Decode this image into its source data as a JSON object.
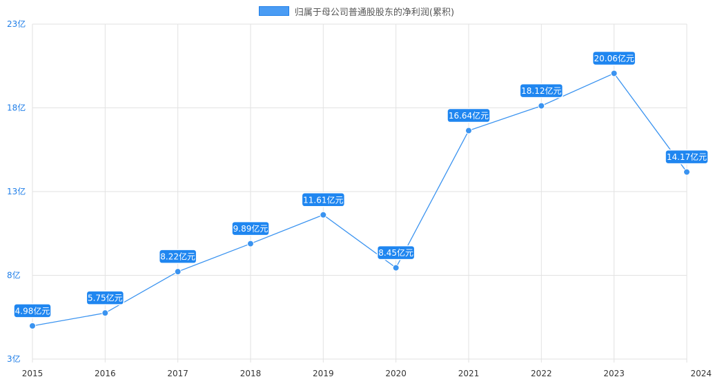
{
  "chart_data": {
    "type": "line",
    "legend": {
      "position": "top-center"
    },
    "x": [
      "2015",
      "2016",
      "2017",
      "2018",
      "2019",
      "2020",
      "2021",
      "2022",
      "2023",
      "2024"
    ],
    "series": [
      {
        "name": "归属于母公司普通股股东的净利润(累积)",
        "color": "#3a93f0",
        "values": [
          4.98,
          5.75,
          8.22,
          9.89,
          11.61,
          8.45,
          16.64,
          18.12,
          20.06,
          14.17
        ],
        "data_labels": [
          "4.98亿元",
          "5.75亿元",
          "8.22亿元",
          "9.89亿元",
          "11.61亿元",
          "8.45亿元",
          "16.64亿元",
          "18.12亿元",
          "20.06亿元",
          "14.17亿元"
        ]
      }
    ],
    "ylim": [
      3,
      23
    ],
    "yticks": [
      3,
      8,
      13,
      18,
      23
    ],
    "ytick_labels": [
      "3亿",
      "8亿",
      "13亿",
      "18亿",
      "23亿"
    ],
    "grid": true
  }
}
